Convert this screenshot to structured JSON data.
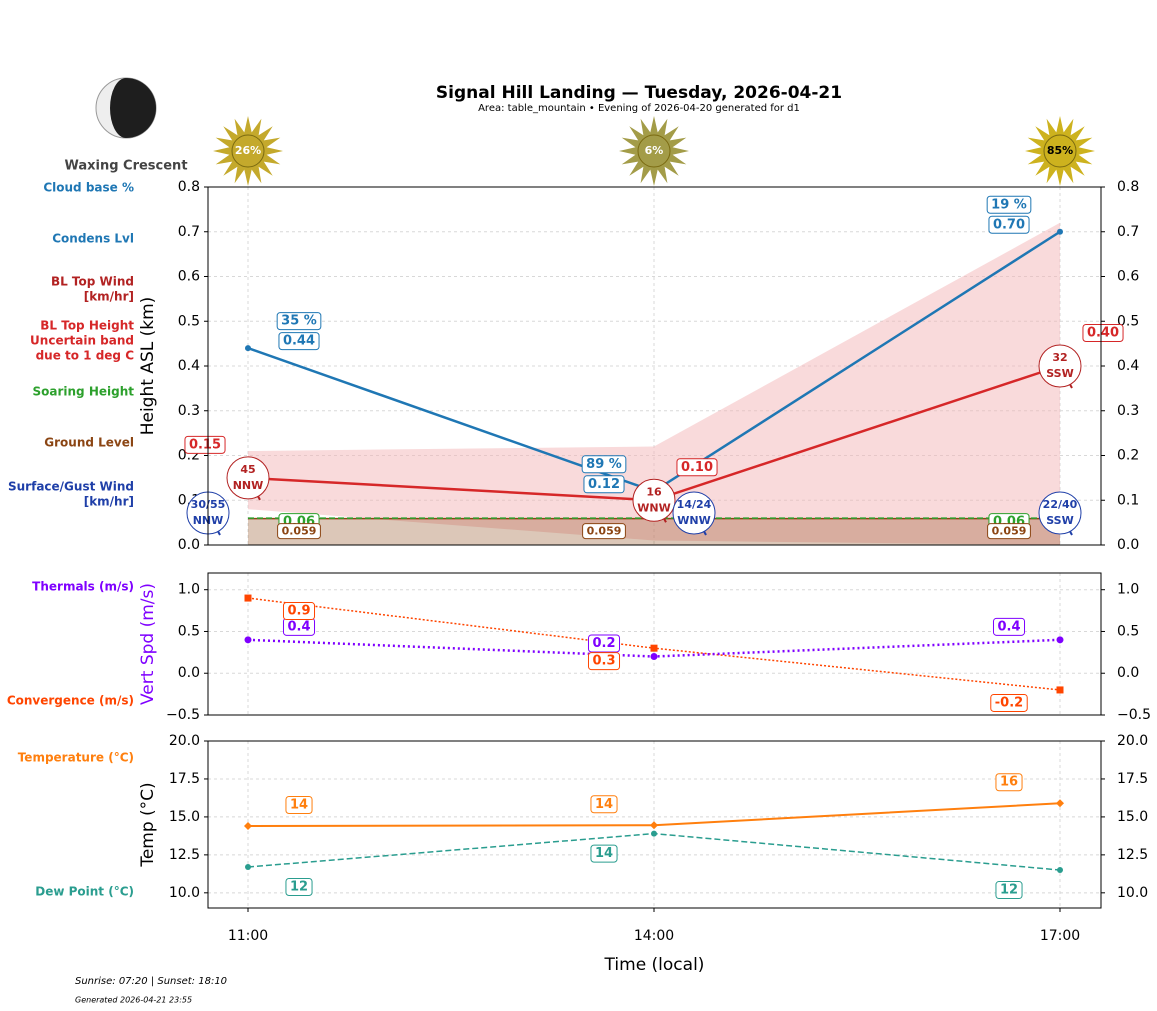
{
  "title": "Signal Hill Landing — Tuesday, 2026-04-21",
  "subtitle": "Area: table_mountain • Evening of 2026-04-20 generated for d1",
  "moon_phase": "Waxing Crescent",
  "sun": {
    "values": [
      26,
      6,
      85
    ],
    "value_labels": [
      "26%",
      "6%",
      "85%"
    ],
    "colors": [
      "#c4a92c",
      "#a39c48",
      "#cdb21e"
    ],
    "label_colors": [
      "#ffffff",
      "#ffffff",
      "#000000"
    ]
  },
  "legend": [
    {
      "lines": [
        "Cloud base %"
      ],
      "color": "#1f77b4"
    },
    {
      "lines": [
        "Condens Lvl"
      ],
      "color": "#1f77b4"
    },
    {
      "lines": [
        "BL Top Wind",
        "[km/hr]"
      ],
      "color": "#b22222"
    },
    {
      "lines": [
        "BL Top Height",
        "Uncertain band",
        "due to 1 deg C"
      ],
      "color": "#d62728"
    },
    {
      "lines": [
        "Soaring Height"
      ],
      "color": "#2ca02c"
    },
    {
      "lines": [
        "Ground Level"
      ],
      "color": "#8b4513"
    },
    {
      "lines": [
        "Surface/Gust Wind",
        "[km/hr]"
      ],
      "color": "#1f3fa8"
    },
    {
      "lines": [
        "Thermals (m/s)"
      ],
      "color": "#7f00ff"
    },
    {
      "lines": [
        "Convergence (m/s)"
      ],
      "color": "#ff4500"
    },
    {
      "lines": [
        "Temperature (°C)"
      ],
      "color": "#ff7f0e"
    },
    {
      "lines": [
        "Dew Point (°C)"
      ],
      "color": "#2a9d8f"
    }
  ],
  "chart_data": [
    {
      "type": "line",
      "y_label": "Height ASL (km)",
      "ylim": [
        0,
        0.8
      ],
      "yticks": [
        {
          "value": 0,
          "label": "0.0"
        },
        0.1,
        0.2,
        0.3,
        0.4,
        0.5,
        0.6,
        0.7,
        0.8
      ],
      "grid": true,
      "condens_level": {
        "color": "#1f77b4",
        "values": [
          0.44,
          0.12,
          0.7
        ],
        "value_labels": [
          "0.44",
          "0.12",
          "0.70"
        ]
      },
      "cloud_base": {
        "values": [
          35,
          89,
          19
        ],
        "value_labels": [
          "35 %",
          "89 %",
          "19 %"
        ]
      },
      "bl_top_height": {
        "color": "#d62728",
        "values": [
          0.15,
          0.1,
          0.4
        ],
        "value_labels": [
          "0.15",
          "0.10",
          "0.40"
        ],
        "band_lower": [
          0.08,
          0.01,
          0
        ],
        "band_upper": [
          0.21,
          0.22,
          0.72
        ],
        "band_color": "#f4b6b8"
      },
      "bl_top_wind": {
        "color": "#b22222",
        "values": [
          45,
          16,
          32
        ],
        "directions": [
          "NNW",
          "WNW",
          "SSW"
        ]
      },
      "soaring_height": {
        "color": "#2ca02c",
        "values": [
          0.06,
          0.06,
          0.06
        ]
      },
      "ground_level": {
        "color": "#8b4513",
        "values": [
          0.059,
          0.059,
          0.059
        ]
      },
      "surface_wind": {
        "color": "#1f3fa8",
        "values": [
          30,
          14,
          22
        ],
        "gust": [
          55,
          24,
          40
        ],
        "value_labels": [
          "30/55",
          "14/24",
          "22/40"
        ],
        "directions": [
          "NNW",
          "WNW",
          "SSW"
        ]
      }
    },
    {
      "type": "line",
      "y_label": "Vert Spd (m/s)",
      "y_label_color": "#7f00ff",
      "ylim": [
        -0.5,
        1.2
      ],
      "yticks": [
        {
          "value": -0.5,
          "label": "−0.5"
        },
        {
          "value": 0,
          "label": "0.0"
        },
        0.5,
        {
          "value": 1,
          "label": "1.0"
        }
      ],
      "grid": true,
      "thermals": {
        "color": "#7f00ff",
        "values": [
          0.4,
          0.2,
          0.4
        ]
      },
      "convergence": {
        "color": "#ff4500",
        "values": [
          0.9,
          0.3,
          -0.2
        ]
      }
    },
    {
      "type": "line",
      "y_label": "Temp (°C)",
      "x_label": "Time (local)",
      "categories": [
        "11:00",
        "14:00",
        "17:00"
      ],
      "ylim": [
        9,
        20
      ],
      "yticks": [
        {
          "value": 10,
          "label": "10.0"
        },
        12.5,
        {
          "value": 15,
          "label": "15.0"
        },
        17.5,
        {
          "value": 20,
          "label": "20.0"
        }
      ],
      "grid": true,
      "temperature": {
        "color": "#ff7f0e",
        "values": [
          14.4,
          14.45,
          15.9
        ],
        "value_labels": [
          "14",
          "14",
          "16"
        ]
      },
      "dew_point": {
        "color": "#2a9d8f",
        "values": [
          11.7,
          13.9,
          11.5
        ],
        "value_labels": [
          "12",
          "14",
          "12"
        ]
      }
    }
  ],
  "footer": [
    "Sunrise: 07:20 | Sunset: 18:10",
    "Generated 2026-04-21 23:55"
  ]
}
